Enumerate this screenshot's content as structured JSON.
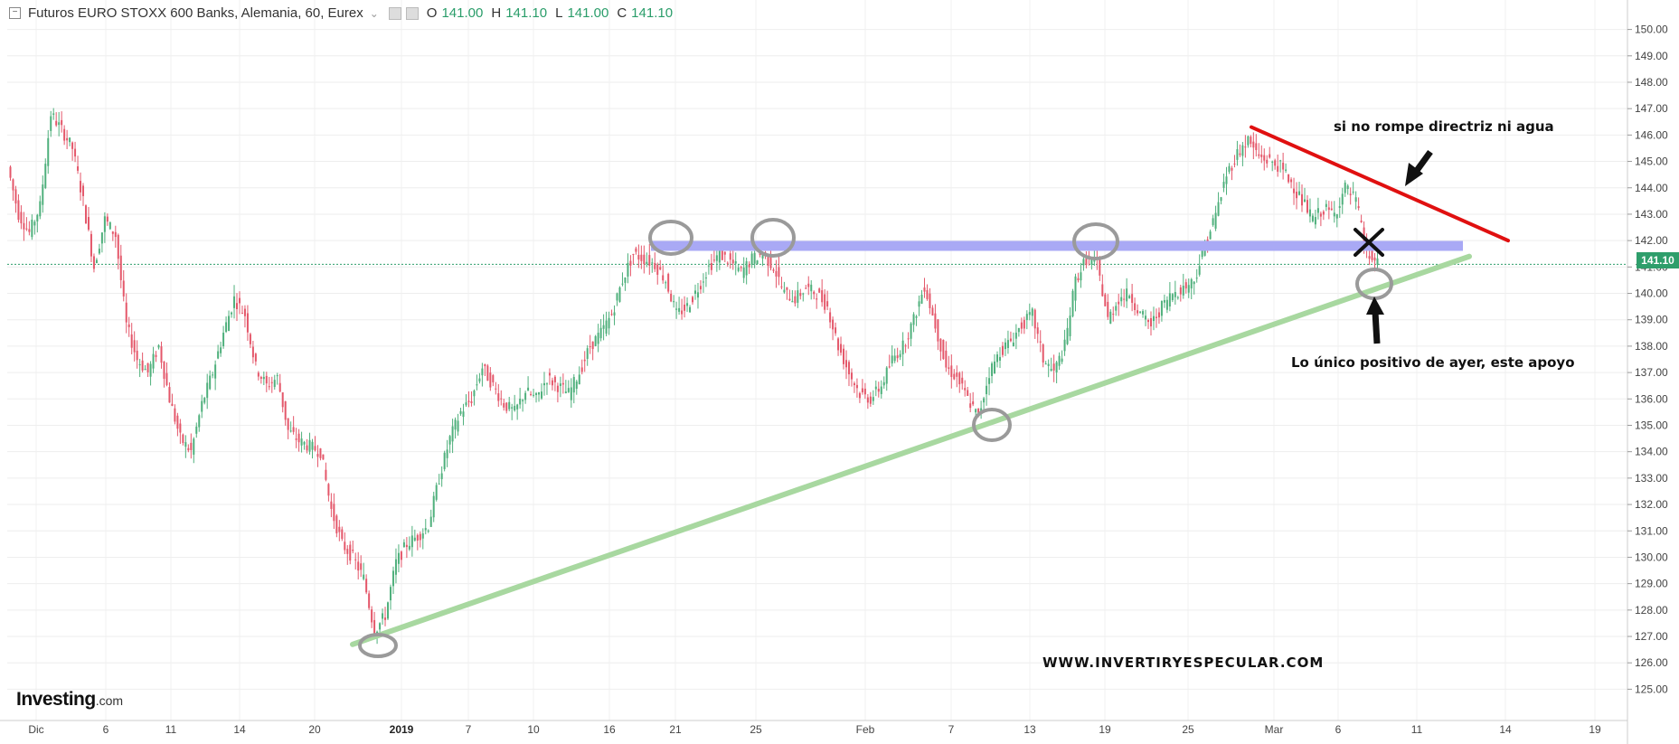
{
  "legend": {
    "collapse_symbol": "−",
    "title": "Futuros EURO STOXX 600 Banks, Alemania, 60, Eurex",
    "caret": "⌄",
    "open_key": "O",
    "open": "141.00",
    "high_key": "H",
    "high": "141.10",
    "low_key": "L",
    "low": "141.00",
    "close_key": "C",
    "close": "141.10"
  },
  "logo": {
    "brand": "Investing",
    "domain": ".com"
  },
  "annotations": {
    "top_right": "si no rompe directriz ni agua",
    "bottom_right": "Lo único positivo de ayer, este apoyo",
    "watermark": "WWW.INVERTIRYESPECULAR.COM"
  },
  "last_price_label": "141.10",
  "chart_data": {
    "type": "candlestick",
    "instrument": "Futuros EURO STOXX 600 Banks, Alemania, 60, Eurex",
    "ylim": [
      124.5,
      150.5
    ],
    "y_ticks": [
      "150.00",
      "149.00",
      "148.00",
      "147.00",
      "146.00",
      "145.00",
      "144.00",
      "143.00",
      "142.00",
      "141.00",
      "140.00",
      "139.00",
      "138.00",
      "137.00",
      "136.00",
      "135.00",
      "134.00",
      "133.00",
      "132.00",
      "131.00",
      "130.00",
      "129.00",
      "128.00",
      "127.00",
      "126.00",
      "125.00"
    ],
    "x_ticks": [
      {
        "label": "Dic",
        "px": 40,
        "bold": false
      },
      {
        "label": "6",
        "px": 117,
        "bold": false
      },
      {
        "label": "11",
        "px": 189,
        "bold": false
      },
      {
        "label": "14",
        "px": 265,
        "bold": false
      },
      {
        "label": "20",
        "px": 348,
        "bold": false
      },
      {
        "label": "2019",
        "px": 444,
        "bold": true
      },
      {
        "label": "7",
        "px": 518,
        "bold": false
      },
      {
        "label": "10",
        "px": 590,
        "bold": false
      },
      {
        "label": "16",
        "px": 674,
        "bold": false
      },
      {
        "label": "21",
        "px": 747,
        "bold": false
      },
      {
        "label": "25",
        "px": 836,
        "bold": false
      },
      {
        "label": "Feb",
        "px": 957,
        "bold": false
      },
      {
        "label": "7",
        "px": 1052,
        "bold": false
      },
      {
        "label": "13",
        "px": 1139,
        "bold": false
      },
      {
        "label": "19",
        "px": 1222,
        "bold": false
      },
      {
        "label": "25",
        "px": 1314,
        "bold": false
      },
      {
        "label": "Mar",
        "px": 1409,
        "bold": false
      },
      {
        "label": "6",
        "px": 1480,
        "bold": false
      },
      {
        "label": "11",
        "px": 1567,
        "bold": false
      },
      {
        "label": "14",
        "px": 1665,
        "bold": false
      },
      {
        "label": "19",
        "px": 1764,
        "bold": false
      }
    ],
    "series": [
      {
        "values": [
          144.8,
          143.0,
          142.3,
          143.3,
          146.8,
          146.2,
          145.5,
          143.5,
          141.0,
          142.8,
          142.2,
          138.8,
          137.5,
          137.0,
          138.0,
          136.0,
          134.5,
          134.0,
          135.8,
          137.0,
          138.5,
          139.8,
          139.2,
          137.2,
          136.5,
          136.8,
          134.8,
          134.4,
          134.2,
          134.0,
          131.8,
          130.5,
          130.0,
          129.2,
          127.2,
          127.8,
          129.8,
          130.5,
          130.8,
          131.2,
          133.0,
          134.5,
          135.5,
          136.0,
          137.2,
          136.5,
          135.8,
          135.5,
          136.3,
          136.0,
          136.8,
          136.5,
          136.2,
          137.0,
          138.0,
          138.5,
          139.2,
          140.5,
          141.5,
          141.3,
          141.1,
          140.5,
          139.2,
          139.5,
          140.2,
          141.0,
          141.5,
          141.2,
          140.8,
          141.3,
          141.5,
          141.0,
          140.0,
          139.8,
          140.2,
          140.0,
          139.5,
          138.0,
          137.0,
          136.2,
          136.0,
          136.5,
          137.5,
          138.0,
          139.0,
          140.3,
          138.8,
          137.2,
          136.8,
          136.0,
          135.3,
          137.0,
          137.8,
          138.2,
          138.8,
          139.2,
          137.5,
          137.0,
          138.0,
          140.5,
          141.3,
          141.1,
          139.0,
          139.8,
          140.0,
          139.2,
          138.8,
          139.5,
          140.0,
          140.2,
          140.5,
          141.8,
          143.0,
          144.5,
          145.3,
          145.8,
          145.2,
          145.0,
          144.8,
          144.2,
          143.5,
          142.8,
          143.2,
          143.0,
          144.0,
          143.5,
          141.5,
          141.1
        ]
      }
    ],
    "trendlines": [
      {
        "name": "support",
        "color": "#a8d8a0",
        "from": [
          "2018-12-28",
          126.7
        ],
        "to": [
          "2019-03-12",
          141.4
        ]
      },
      {
        "name": "resistance",
        "color": "#e01010",
        "from": [
          "2019-02-28",
          146.3
        ],
        "to": [
          "2019-03-14",
          142.0
        ]
      },
      {
        "name": "horizontal-zone",
        "color": "#a9a9f5",
        "from": [
          "2019-01-19",
          141.8
        ],
        "to": [
          "2019-03-12",
          141.8
        ]
      }
    ],
    "last_price": 141.1
  }
}
